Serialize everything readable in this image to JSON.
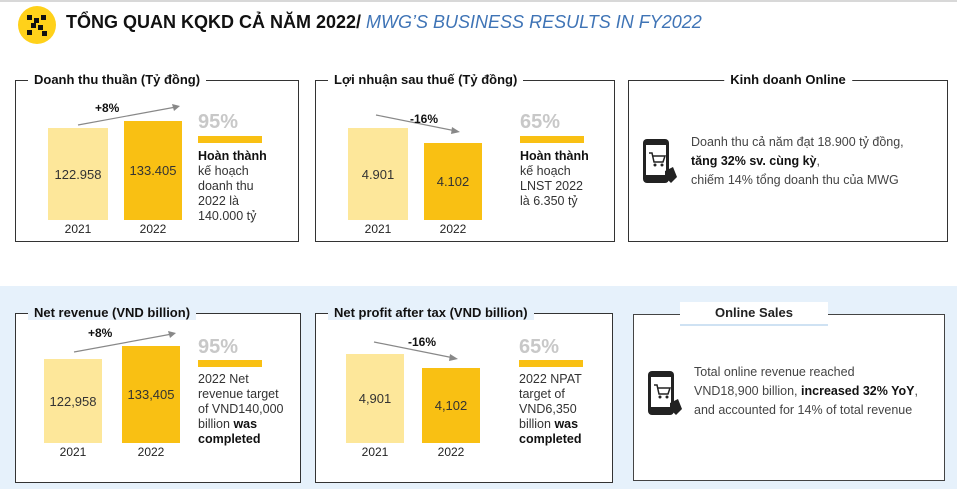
{
  "header": {
    "title_vn": "TỔNG QUAN KQKD CẢ NĂM 2022/",
    "title_en": "MWG’S BUSINESS RESULTS IN FY2022"
  },
  "vn": {
    "revenue": {
      "title": "Doanh thu thuần (Tỷ đồng)",
      "growth": "+8%",
      "bar_2021": "122.958",
      "bar_2022": "133.405",
      "year_2021": "2021",
      "year_2022": "2022",
      "pct": "95%",
      "note_bold": "Hoàn thành",
      "note_lines": [
        "kế hoạch",
        "doanh thu",
        "2022 là",
        "140.000 tỷ"
      ]
    },
    "profit": {
      "title": "Lợi nhuận sau thuế (Tỷ đồng)",
      "growth": "-16%",
      "bar_2021": "4.901",
      "bar_2022": "4.102",
      "year_2021": "2021",
      "year_2022": "2022",
      "pct": "65%",
      "note_bold": "Hoàn thành",
      "note_lines": [
        "kế hoạch",
        "LNST 2022",
        "là 6.350 tỷ"
      ]
    },
    "online": {
      "title": "Kinh doanh Online",
      "line1": "Doanh thu cả năm đạt 18.900 tỷ đồng,",
      "line2_bold": "tăng 32% sv. cùng kỳ",
      "line2_rest": ",",
      "line3": "chiếm 14% tổng doanh thu của MWG"
    }
  },
  "en": {
    "revenue": {
      "title": "Net revenue (VND billion)",
      "growth": "+8%",
      "bar_2021": "122,958",
      "bar_2022": "133,405",
      "year_2021": "2021",
      "year_2022": "2022",
      "pct": "95%",
      "note_lines": [
        "2022 Net",
        "revenue target",
        "of VND140,000",
        "billion"
      ],
      "note_bold_tail": "was",
      "note_bold_last": "completed"
    },
    "profit": {
      "title": "Net profit after tax (VND billion)",
      "growth": "-16%",
      "bar_2021": "4,901",
      "bar_2022": "4,102",
      "year_2021": "2021",
      "year_2022": "2022",
      "pct": "65%",
      "note_lines": [
        "2022 NPAT",
        "target of",
        "VND6,350",
        "billion"
      ],
      "note_bold_tail": "was",
      "note_bold_last": "completed"
    },
    "online": {
      "title": "Online Sales",
      "line1": "Total online revenue reached",
      "line2_start": "VND18,900 billion, ",
      "line2_bold": "increased 32% YoY",
      "line2_rest": ",",
      "line3": "and accounted for 14% of total revenue"
    }
  },
  "colors": {
    "accent": "#f9c013",
    "light_bar": "#fde79a",
    "band": "#e6f1fb",
    "title_en": "#3f74b6"
  },
  "icons": [
    "mwg-logo-icon",
    "phone-cart-icon"
  ]
}
